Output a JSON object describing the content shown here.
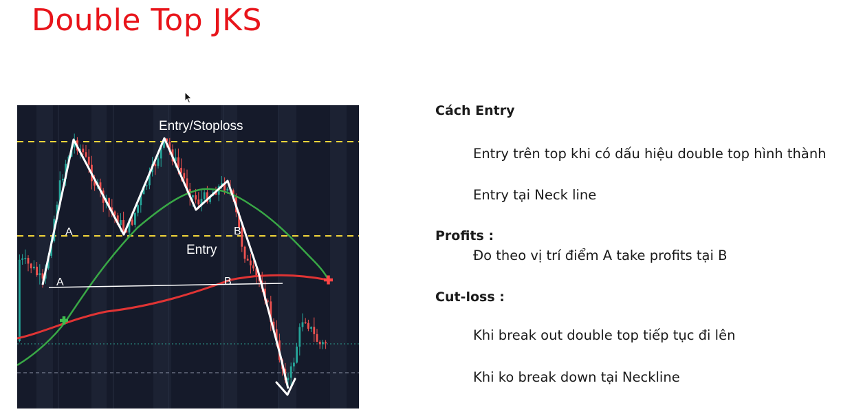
{
  "title": "Double Top JKS",
  "chart": {
    "labels": {
      "entry_stoploss": "Entry/Stoploss",
      "entry": "Entry",
      "a_upper": "A",
      "b_upper": "B",
      "a_lower": "A",
      "b_lower": "B"
    },
    "colors": {
      "background": "#151a2a",
      "bull_candle": "#26a69a",
      "bear_candle": "#ef5350",
      "pattern_line": "#ffffff",
      "green_ma": "#43a047",
      "red_ma": "#e53935",
      "dashed_level": "#f2d63a"
    }
  },
  "notes": {
    "entry_heading": "Cách Entry",
    "entry_1": "Entry trên top khi có dấu hiệu double top hình thành",
    "entry_2": "Entry tại Neck line",
    "profits_heading": "Profits :",
    "profits_1": "Đo theo vị trí điểm A take profits tại B",
    "cutloss_heading": "Cut-loss :",
    "cutloss_1": "Khi break out double top tiếp tục đi lên",
    "cutloss_2": "Khi ko break down tại Neckline"
  }
}
